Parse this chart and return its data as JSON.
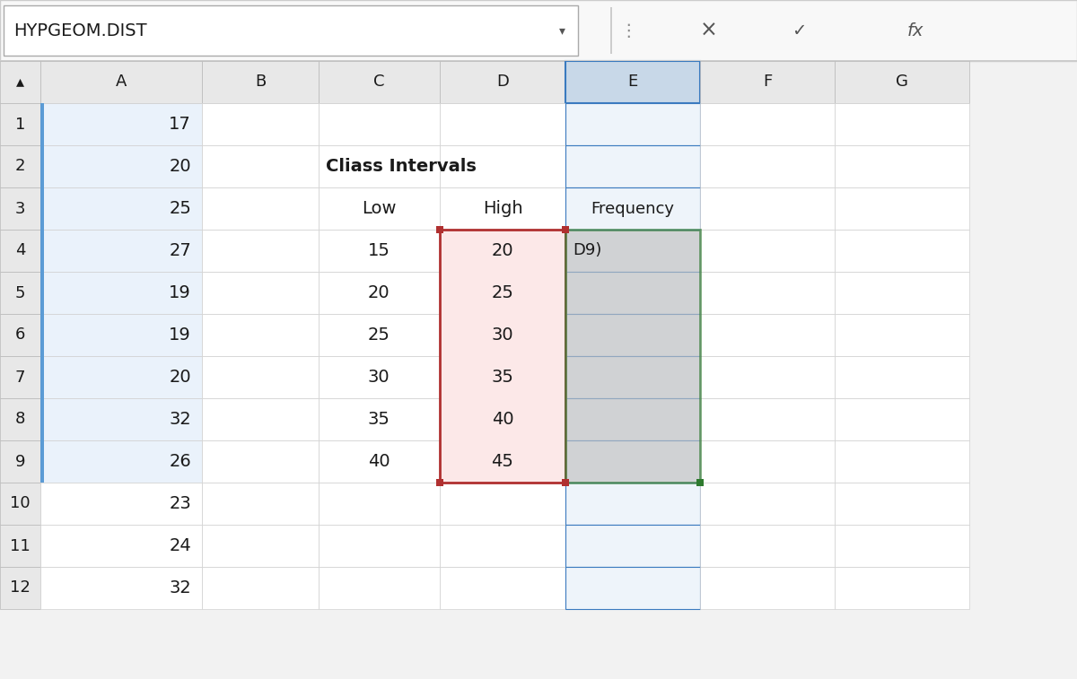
{
  "formula_bar_text": "HYPGEOM.DIST",
  "col_headers": [
    "▴",
    "A",
    "B",
    "C",
    "D",
    "E",
    "F",
    "G"
  ],
  "col_A_values": [
    "17",
    "20",
    "25",
    "27",
    "19",
    "19",
    "20",
    "32",
    "26",
    "23",
    "24",
    "32"
  ],
  "col_C_header": "Cliass Intervals",
  "col_C_low_label": "Low",
  "col_D_high_label": "High",
  "col_E_freq_label": "Frequency",
  "low_values": [
    "15",
    "20",
    "25",
    "30",
    "35",
    "40"
  ],
  "high_values": [
    "20",
    "25",
    "30",
    "35",
    "40",
    "45"
  ],
  "freq_formula": "D9)",
  "bg_color": "#f2f2f2",
  "header_bg": "#e8e8e8",
  "cell_bg": "#ffffff",
  "col_a_bg": "#eaf2fb",
  "col_e_header_bg": "#c8d8e8",
  "col_e_cell_bg": "#eef4fa",
  "red_sel_bg": "#fce8e8",
  "gray_sel_bg": "#c0c0c0",
  "grid_color": "#d0d0d0",
  "header_grid_color": "#b8b8b8",
  "text_color": "#1a1a1a",
  "formula_bar_bg": "#f8f8f8",
  "top_bar_bg": "#f0f0f0",
  "blue_border_color": "#5b9bd5",
  "red_border_color": "#b03030",
  "green_border_color": "#2e7a2e"
}
